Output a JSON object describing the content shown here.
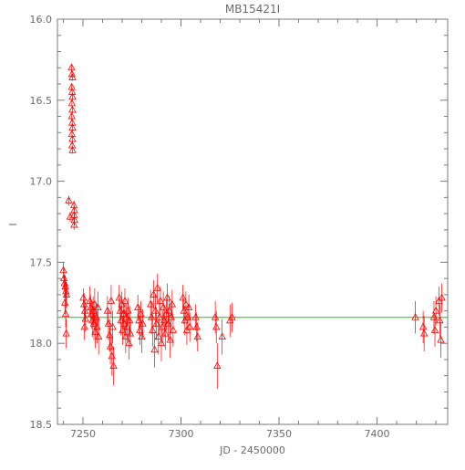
{
  "chart_data": {
    "type": "scatter",
    "title": "MB15421I",
    "xlabel": "JD - 2450000",
    "ylabel": "I",
    "xlim": [
      7237,
      7436
    ],
    "ylim": [
      18.5,
      16.0
    ],
    "y_inverted": true,
    "x_ticks": [
      7250,
      7300,
      7350,
      7400
    ],
    "y_ticks": [
      16.0,
      16.5,
      17.0,
      17.5,
      18.0,
      18.5
    ],
    "x_tick_labels": [
      "7250",
      "7300",
      "7350",
      "7400"
    ],
    "y_tick_labels": [
      "16.0",
      "16.5",
      "17.0",
      "17.5",
      "18.0",
      "18.5"
    ],
    "colors": {
      "points": "#ff0000",
      "baseline": "#00d000",
      "frame": "#7a7a7a",
      "text": "#6b6b6b"
    },
    "marker": "open-triangle",
    "baseline": {
      "y": 17.84,
      "x_range": [
        7237,
        7436
      ]
    },
    "series": [
      {
        "points": [
          {
            "x": 7240.0,
            "y": 17.55,
            "err": 0.05
          },
          {
            "x": 7240.3,
            "y": 17.6,
            "err": 0.06
          },
          {
            "x": 7240.6,
            "y": 17.63,
            "err": 0.05
          },
          {
            "x": 7241.0,
            "y": 17.65,
            "err": 0.07
          },
          {
            "x": 7241.3,
            "y": 17.68,
            "err": 0.06
          },
          {
            "x": 7241.6,
            "y": 17.7,
            "err": 0.08
          },
          {
            "x": 7240.8,
            "y": 17.75,
            "err": 0.07
          },
          {
            "x": 7241.2,
            "y": 17.82,
            "err": 0.08
          },
          {
            "x": 7241.5,
            "y": 17.94,
            "err": 0.09
          },
          {
            "x": 7242.8,
            "y": 17.12,
            "err": 0.03
          },
          {
            "x": 7243.5,
            "y": 17.22,
            "err": 0.03
          },
          {
            "x": 7244.2,
            "y": 16.3,
            "err": 0.02
          },
          {
            "x": 7244.4,
            "y": 16.34,
            "err": 0.02
          },
          {
            "x": 7244.6,
            "y": 16.36,
            "err": 0.02
          },
          {
            "x": 7244.3,
            "y": 16.42,
            "err": 0.02
          },
          {
            "x": 7244.5,
            "y": 16.45,
            "err": 0.02
          },
          {
            "x": 7244.7,
            "y": 16.48,
            "err": 0.02
          },
          {
            "x": 7244.4,
            "y": 16.52,
            "err": 0.02
          },
          {
            "x": 7244.6,
            "y": 16.56,
            "err": 0.02
          },
          {
            "x": 7244.3,
            "y": 16.6,
            "err": 0.02
          },
          {
            "x": 7244.5,
            "y": 16.64,
            "err": 0.02
          },
          {
            "x": 7244.7,
            "y": 16.67,
            "err": 0.02
          },
          {
            "x": 7244.4,
            "y": 16.71,
            "err": 0.02
          },
          {
            "x": 7244.6,
            "y": 16.74,
            "err": 0.02
          },
          {
            "x": 7244.5,
            "y": 16.78,
            "err": 0.02
          },
          {
            "x": 7244.7,
            "y": 16.81,
            "err": 0.02
          },
          {
            "x": 7245.4,
            "y": 17.15,
            "err": 0.03
          },
          {
            "x": 7245.6,
            "y": 17.18,
            "err": 0.03
          },
          {
            "x": 7245.5,
            "y": 17.21,
            "err": 0.03
          },
          {
            "x": 7245.7,
            "y": 17.24,
            "err": 0.03
          },
          {
            "x": 7245.5,
            "y": 17.27,
            "err": 0.03
          },
          {
            "x": 7250.2,
            "y": 17.72,
            "err": 0.06
          },
          {
            "x": 7250.6,
            "y": 17.76,
            "err": 0.07
          },
          {
            "x": 7251.0,
            "y": 17.8,
            "err": 0.06
          },
          {
            "x": 7251.3,
            "y": 17.85,
            "err": 0.08
          },
          {
            "x": 7250.8,
            "y": 17.9,
            "err": 0.08
          },
          {
            "x": 7253.5,
            "y": 17.74,
            "err": 0.09
          },
          {
            "x": 7254.0,
            "y": 17.78,
            "err": 0.08
          },
          {
            "x": 7254.3,
            "y": 17.82,
            "err": 0.09
          },
          {
            "x": 7254.8,
            "y": 17.86,
            "err": 0.1
          },
          {
            "x": 7255.2,
            "y": 17.8,
            "err": 0.09
          },
          {
            "x": 7255.6,
            "y": 17.88,
            "err": 0.1
          },
          {
            "x": 7256.0,
            "y": 17.76,
            "err": 0.1
          },
          {
            "x": 7256.3,
            "y": 17.93,
            "err": 0.1
          },
          {
            "x": 7256.8,
            "y": 17.84,
            "err": 0.09
          },
          {
            "x": 7257.2,
            "y": 17.9,
            "err": 0.1
          },
          {
            "x": 7257.6,
            "y": 17.78,
            "err": 0.1
          },
          {
            "x": 7258.0,
            "y": 17.96,
            "err": 0.11
          },
          {
            "x": 7262.5,
            "y": 17.8,
            "err": 0.09
          },
          {
            "x": 7263.0,
            "y": 17.88,
            "err": 0.1
          },
          {
            "x": 7263.6,
            "y": 17.95,
            "err": 0.1
          },
          {
            "x": 7264.0,
            "y": 18.02,
            "err": 0.11
          },
          {
            "x": 7264.4,
            "y": 17.74,
            "err": 0.1
          },
          {
            "x": 7264.8,
            "y": 18.08,
            "err": 0.12
          },
          {
            "x": 7265.2,
            "y": 17.9,
            "err": 0.1
          },
          {
            "x": 7265.6,
            "y": 18.14,
            "err": 0.12
          },
          {
            "x": 7268.5,
            "y": 17.72,
            "err": 0.08
          },
          {
            "x": 7269.0,
            "y": 17.8,
            "err": 0.08
          },
          {
            "x": 7269.4,
            "y": 17.86,
            "err": 0.09
          },
          {
            "x": 7269.8,
            "y": 17.76,
            "err": 0.08
          },
          {
            "x": 7270.2,
            "y": 17.92,
            "err": 0.09
          },
          {
            "x": 7270.6,
            "y": 17.82,
            "err": 0.08
          },
          {
            "x": 7271.0,
            "y": 17.88,
            "err": 0.09
          },
          {
            "x": 7271.4,
            "y": 17.74,
            "err": 0.08
          },
          {
            "x": 7271.8,
            "y": 17.96,
            "err": 0.1
          },
          {
            "x": 7272.2,
            "y": 17.84,
            "err": 0.08
          },
          {
            "x": 7272.6,
            "y": 17.9,
            "err": 0.09
          },
          {
            "x": 7273.0,
            "y": 17.8,
            "err": 0.08
          },
          {
            "x": 7273.4,
            "y": 18.0,
            "err": 0.1
          },
          {
            "x": 7273.8,
            "y": 17.86,
            "err": 0.09
          },
          {
            "x": 7274.2,
            "y": 17.94,
            "err": 0.09
          },
          {
            "x": 7278.0,
            "y": 17.78,
            "err": 0.08
          },
          {
            "x": 7278.5,
            "y": 17.86,
            "err": 0.09
          },
          {
            "x": 7279.0,
            "y": 17.92,
            "err": 0.09
          },
          {
            "x": 7279.5,
            "y": 17.82,
            "err": 0.08
          },
          {
            "x": 7280.0,
            "y": 17.96,
            "err": 0.1
          },
          {
            "x": 7280.5,
            "y": 17.88,
            "err": 0.09
          },
          {
            "x": 7284.5,
            "y": 17.76,
            "err": 0.09
          },
          {
            "x": 7285.0,
            "y": 17.84,
            "err": 0.1
          },
          {
            "x": 7285.5,
            "y": 17.92,
            "err": 0.1
          },
          {
            "x": 7286.0,
            "y": 17.7,
            "err": 0.09
          },
          {
            "x": 7286.5,
            "y": 18.04,
            "err": 0.11
          },
          {
            "x": 7287.0,
            "y": 17.8,
            "err": 0.1
          },
          {
            "x": 7287.5,
            "y": 17.88,
            "err": 0.1
          },
          {
            "x": 7288.0,
            "y": 17.66,
            "err": 0.09
          },
          {
            "x": 7288.5,
            "y": 17.96,
            "err": 0.11
          },
          {
            "x": 7289.0,
            "y": 17.84,
            "err": 0.1
          },
          {
            "x": 7289.5,
            "y": 17.74,
            "err": 0.09
          },
          {
            "x": 7290.0,
            "y": 18.0,
            "err": 0.11
          },
          {
            "x": 7290.5,
            "y": 17.9,
            "err": 0.1
          },
          {
            "x": 7291.0,
            "y": 17.78,
            "err": 0.1
          },
          {
            "x": 7291.5,
            "y": 17.86,
            "err": 0.1
          },
          {
            "x": 7292.0,
            "y": 17.94,
            "err": 0.1
          },
          {
            "x": 7292.5,
            "y": 17.82,
            "err": 0.1
          },
          {
            "x": 7293.0,
            "y": 17.72,
            "err": 0.09
          },
          {
            "x": 7293.5,
            "y": 17.88,
            "err": 0.1
          },
          {
            "x": 7294.0,
            "y": 17.8,
            "err": 0.09
          },
          {
            "x": 7294.5,
            "y": 17.98,
            "err": 0.11
          },
          {
            "x": 7295.0,
            "y": 17.84,
            "err": 0.1
          },
          {
            "x": 7295.5,
            "y": 17.76,
            "err": 0.09
          },
          {
            "x": 7296.0,
            "y": 17.92,
            "err": 0.1
          },
          {
            "x": 7301.0,
            "y": 17.72,
            "err": 0.08
          },
          {
            "x": 7301.5,
            "y": 17.8,
            "err": 0.08
          },
          {
            "x": 7302.0,
            "y": 17.86,
            "err": 0.09
          },
          {
            "x": 7302.5,
            "y": 17.76,
            "err": 0.08
          },
          {
            "x": 7303.0,
            "y": 17.92,
            "err": 0.09
          },
          {
            "x": 7303.5,
            "y": 17.84,
            "err": 0.08
          },
          {
            "x": 7304.0,
            "y": 17.78,
            "err": 0.08
          },
          {
            "x": 7304.5,
            "y": 17.9,
            "err": 0.09
          },
          {
            "x": 7307.5,
            "y": 17.84,
            "err": 0.08
          },
          {
            "x": 7308.0,
            "y": 17.9,
            "err": 0.09
          },
          {
            "x": 7308.5,
            "y": 17.96,
            "err": 0.09
          },
          {
            "x": 7317.5,
            "y": 17.84,
            "err": 0.1
          },
          {
            "x": 7318.0,
            "y": 17.9,
            "err": 0.1
          },
          {
            "x": 7318.5,
            "y": 18.14,
            "err": 0.14
          },
          {
            "x": 7321.0,
            "y": 17.96,
            "err": 0.11
          },
          {
            "x": 7325.0,
            "y": 17.86,
            "err": 0.1
          },
          {
            "x": 7326.0,
            "y": 17.84,
            "err": 0.09
          },
          {
            "x": 7419.5,
            "y": 17.84,
            "err": 0.1
          },
          {
            "x": 7423.5,
            "y": 17.9,
            "err": 0.1
          },
          {
            "x": 7424.0,
            "y": 17.94,
            "err": 0.11
          },
          {
            "x": 7429.0,
            "y": 17.84,
            "err": 0.1
          },
          {
            "x": 7429.5,
            "y": 17.92,
            "err": 0.1
          },
          {
            "x": 7430.0,
            "y": 17.8,
            "err": 0.09
          },
          {
            "x": 7431.5,
            "y": 17.74,
            "err": 0.09
          },
          {
            "x": 7432.0,
            "y": 17.86,
            "err": 0.1
          },
          {
            "x": 7432.5,
            "y": 17.98,
            "err": 0.11
          },
          {
            "x": 7433.0,
            "y": 17.72,
            "err": 0.09
          }
        ]
      }
    ]
  }
}
